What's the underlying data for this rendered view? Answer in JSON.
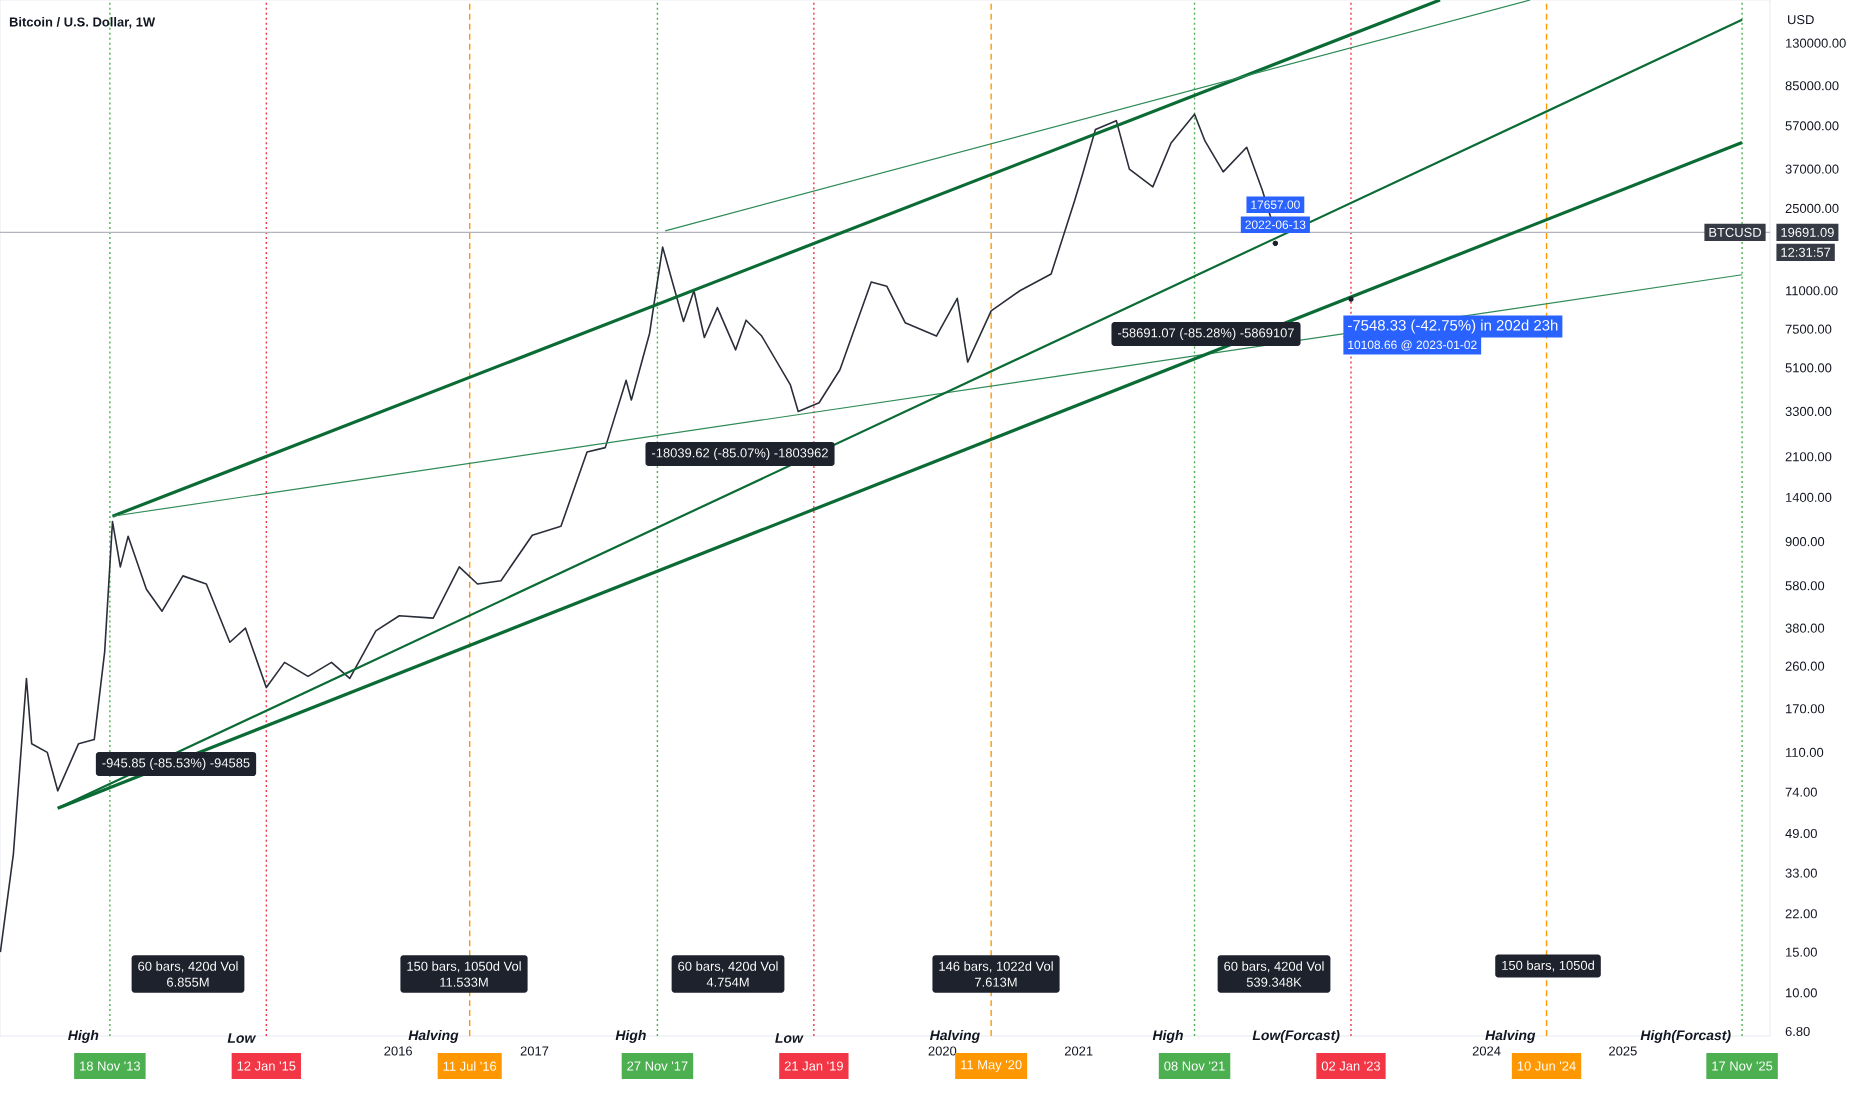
{
  "chart_data": {
    "type": "line",
    "title": "Bitcoin / U.S. Dollar, 1W",
    "ylabel": "USD",
    "log": "y",
    "xlim": [
      "2013-01-27",
      "2026-01-31"
    ],
    "xticks": [
      {
        "value": "2016-01-01",
        "label": "2016"
      },
      {
        "value": "2017-01-01",
        "label": "2017"
      },
      {
        "value": "2020-01-01",
        "label": "2020"
      },
      {
        "value": "2021-01-01",
        "label": "2021"
      },
      {
        "value": "2024-01-01",
        "label": "2024"
      },
      {
        "value": "2025-01-01",
        "label": "2025"
      }
    ],
    "ylim": [
      6.5,
      200000
    ],
    "yticks": [
      {
        "value": 6.8,
        "label": "6.80"
      },
      {
        "value": 10,
        "label": "10.00"
      },
      {
        "value": 15,
        "label": "15.00"
      },
      {
        "value": 22,
        "label": "22.00"
      },
      {
        "value": 33,
        "label": "33.00"
      },
      {
        "value": 49,
        "label": "49.00"
      },
      {
        "value": 74,
        "label": "74.00"
      },
      {
        "value": 110,
        "label": "110.00"
      },
      {
        "value": 170,
        "label": "170.00"
      },
      {
        "value": 260,
        "label": "260.00"
      },
      {
        "value": 380,
        "label": "380.00"
      },
      {
        "value": 580,
        "label": "580.00"
      },
      {
        "value": 900,
        "label": "900.00"
      },
      {
        "value": 1400,
        "label": "1400.00"
      },
      {
        "value": 2100,
        "label": "2100.00"
      },
      {
        "value": 3300,
        "label": "3300.00"
      },
      {
        "value": 5100,
        "label": "5100.00"
      },
      {
        "value": 7500,
        "label": "7500.00"
      },
      {
        "value": 11000,
        "label": "11000.00"
      },
      {
        "value": 25000,
        "label": "25000.00"
      },
      {
        "value": 37000,
        "label": "37000.00"
      },
      {
        "value": 57000,
        "label": "57000.00"
      },
      {
        "value": 85000,
        "label": "85000.00"
      },
      {
        "value": 130000,
        "label": "130000.00"
      }
    ],
    "series": [
      {
        "name": "BTCUSD",
        "color": "#2a2e39",
        "x": [
          "2013-01-28",
          "2013-03-04",
          "2013-04-08",
          "2013-04-22",
          "2013-06-03",
          "2013-07-01",
          "2013-08-26",
          "2013-10-07",
          "2013-11-04",
          "2013-11-25",
          "2013-12-16",
          "2014-01-06",
          "2014-02-24",
          "2014-04-07",
          "2014-06-02",
          "2014-08-04",
          "2014-10-06",
          "2014-11-17",
          "2015-01-12",
          "2015-03-02",
          "2015-05-04",
          "2015-07-06",
          "2015-08-24",
          "2015-11-02",
          "2016-01-04",
          "2016-04-04",
          "2016-06-13",
          "2016-08-01",
          "2016-10-03",
          "2016-12-26",
          "2017-03-13",
          "2017-05-22",
          "2017-07-10",
          "2017-09-04",
          "2017-09-18",
          "2017-11-06",
          "2017-12-11",
          "2018-02-05",
          "2018-03-05",
          "2018-04-02",
          "2018-05-07",
          "2018-06-25",
          "2018-07-23",
          "2018-09-03",
          "2018-11-19",
          "2018-12-10",
          "2019-02-04",
          "2019-04-01",
          "2019-06-24",
          "2019-08-05",
          "2019-09-23",
          "2019-12-16",
          "2020-02-10",
          "2020-03-09",
          "2020-05-11",
          "2020-07-27",
          "2020-10-19",
          "2020-12-21",
          "2021-01-11",
          "2021-02-15",
          "2021-04-12",
          "2021-05-17",
          "2021-07-19",
          "2021-09-06",
          "2021-11-08",
          "2021-12-06",
          "2022-01-24",
          "2022-03-28",
          "2022-05-09",
          "2022-06-13"
        ],
        "values": [
          15,
          40,
          230,
          120,
          110,
          75,
          120,
          125,
          300,
          1100,
          700,
          950,
          560,
          450,
          640,
          590,
          330,
          380,
          210,
          270,
          235,
          270,
          230,
          370,
          430,
          420,
          700,
          590,
          610,
          960,
          1050,
          2200,
          2300,
          4500,
          3700,
          7200,
          17000,
          8100,
          11000,
          6900,
          9300,
          6100,
          8200,
          7000,
          4300,
          3300,
          3600,
          5000,
          12000,
          11500,
          8000,
          7000,
          10200,
          5400,
          9000,
          11000,
          13000,
          27000,
          35000,
          55000,
          60000,
          37000,
          31000,
          48000,
          64000,
          49000,
          36000,
          46000,
          30000,
          19691.09
        ]
      },
      {
        "type": "line",
        "color": "#0b6b35",
        "x": [
          "2013-11-25",
          "2023-08-29"
        ],
        "values": [
          1160,
          200000
        ]
      },
      {
        "type": "line",
        "color": "#2e8b57",
        "x": [
          "2017-12-18",
          "2024-04-27"
        ],
        "values": [
          20000,
          200000
        ]
      },
      {
        "type": "line",
        "color": "#2e8b57",
        "x": [
          "2013-11-25",
          "2025-11-17"
        ],
        "values": [
          1160,
          12900
        ]
      },
      {
        "type": "line",
        "color": "#0b6b35",
        "x": [
          "2013-07-01",
          "2025-11-17"
        ],
        "values": [
          63,
          164000
        ]
      },
      {
        "type": "line",
        "color": "#0b6b35",
        "x": [
          "2013-07-01",
          "2025-11-17"
        ],
        "values": [
          63,
          48300
        ]
      }
    ],
    "ref_lines": [
      {
        "axis": "x",
        "value": "2013-11-18",
        "label": "18 Nov '13",
        "color": "#4caf50",
        "line_style": "dotted"
      },
      {
        "axis": "x",
        "value": "2015-01-12",
        "label": "12 Jan '15",
        "color": "#f23645",
        "line_style": "dotted"
      },
      {
        "axis": "x",
        "value": "2016-07-11",
        "label": "11 Jul '16",
        "color": "#ff9800",
        "line_style": "dashed"
      },
      {
        "axis": "x",
        "value": "2017-11-27",
        "label": "27 Nov '17",
        "color": "#4caf50",
        "line_style": "dotted"
      },
      {
        "axis": "x",
        "value": "2019-01-21",
        "label": "21 Jan '19",
        "color": "#f23645",
        "line_style": "dotted"
      },
      {
        "axis": "x",
        "value": "2020-05-11",
        "label": "11 May '20",
        "color": "#ff9800",
        "line_style": "dashed"
      },
      {
        "axis": "x",
        "value": "2021-11-08",
        "label": "08 Nov '21",
        "color": "#4caf50",
        "line_style": "dotted"
      },
      {
        "axis": "x",
        "value": "2023-01-02",
        "label": "02 Jan '23",
        "color": "#f23645",
        "line_style": "dotted"
      },
      {
        "axis": "x",
        "value": "2024-06-10",
        "label": "10 Jun '24",
        "color": "#ff9800",
        "line_style": "dashed"
      },
      {
        "axis": "x",
        "value": "2025-11-17",
        "label": "17 Nov '25",
        "color": "#4caf50",
        "line_style": "dotted"
      },
      {
        "axis": "y",
        "value": 19691.09,
        "label": "19691.09",
        "color": "#b2b5be",
        "line_style": "solid"
      }
    ],
    "annotations": [
      "-945.85 (-85.53%) -94585",
      "-18039.62 (-85.07%) -1803962",
      "-58691.07 (-85.28%) -5869107",
      {
        "text": "17657.00",
        "x": "2022-06-13",
        "y": 17657
      },
      {
        "text": "2022-06-13",
        "x": "2022-06-13",
        "y": 17657
      },
      {
        "text": "-7548.33 (-42.75%) in 202d 23h",
        "x": "2023-01-02",
        "y": 10108.66
      },
      "10108.66 @ 2023-01-02",
      "60 bars, 420d Vol 6.855M",
      "150 bars, 1050d Vol 11.533M",
      "60 bars, 420d Vol 4.754M",
      "146 bars, 1022d Vol 7.613M",
      "60 bars, 420d Vol 539.348K",
      "150 bars, 1050d",
      {
        "text": "High",
        "x": "2013-11-18"
      },
      {
        "text": "Low",
        "x": "2015-01-12"
      },
      {
        "text": "Halving",
        "x": "2016-07-11"
      },
      {
        "text": "High",
        "x": "2017-11-27"
      },
      {
        "text": "Low",
        "x": "2019-01-21"
      },
      {
        "text": "Halving",
        "x": "2020-05-11"
      },
      {
        "text": "High",
        "x": "2021-11-08"
      },
      {
        "text": "Low(Forcast)",
        "x": "2023-01-02"
      },
      {
        "text": "Halving",
        "x": "2024-06-10"
      },
      {
        "text": "High(Forcast)",
        "x": "2025-11-17"
      },
      "12:31:57"
    ]
  }
}
